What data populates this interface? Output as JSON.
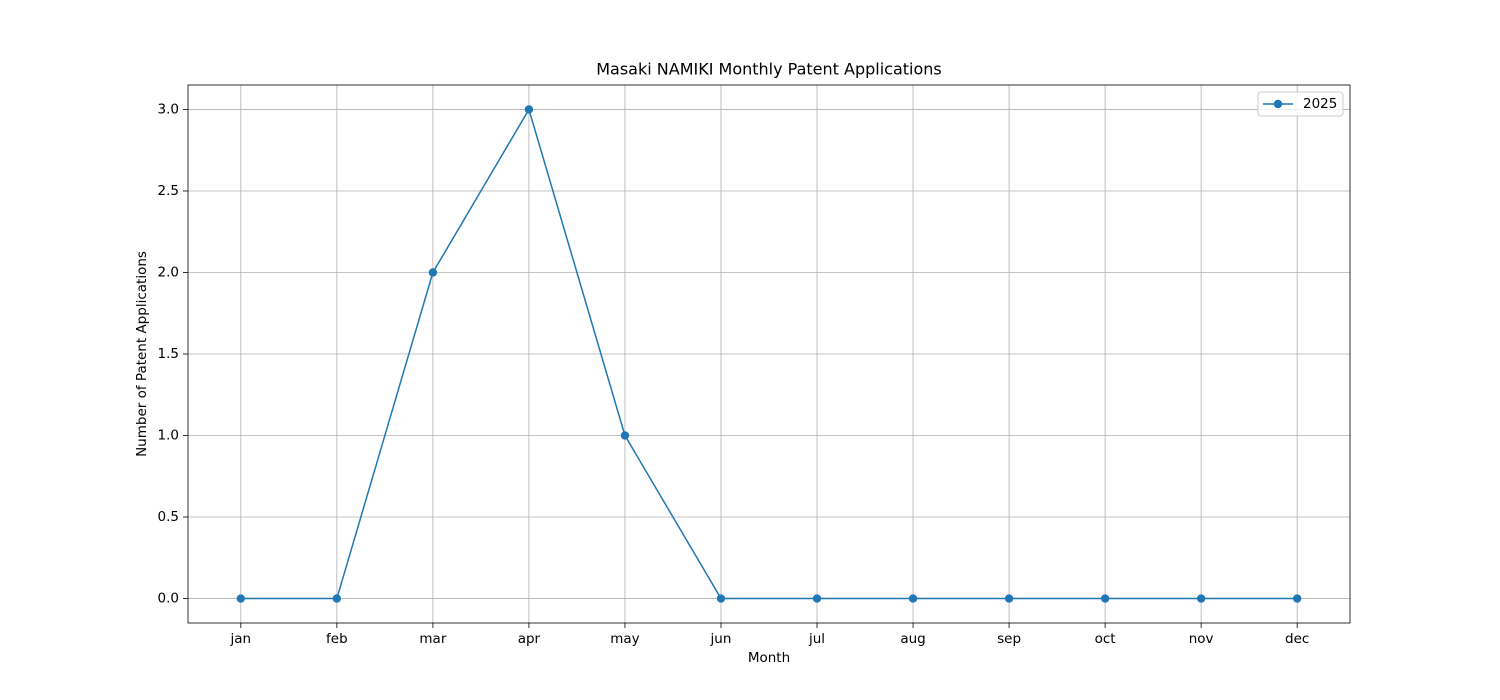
{
  "chart_data": {
    "type": "line",
    "title": "Masaki NAMIKI Monthly Patent Applications",
    "x_label": "Month",
    "y_label": "Number of Patent Applications",
    "categories": [
      "jan",
      "feb",
      "mar",
      "apr",
      "may",
      "jun",
      "jul",
      "aug",
      "sep",
      "oct",
      "nov",
      "dec"
    ],
    "series": [
      {
        "name": "2025",
        "color": "#1f77b4",
        "values": [
          0,
          0,
          2,
          3,
          1,
          0,
          0,
          0,
          0,
          0,
          0,
          0
        ]
      }
    ],
    "ylim": [
      -0.15,
      3.15
    ],
    "yticks": [
      {
        "value": 0,
        "label": "0.0"
      },
      0.5,
      {
        "value": 1,
        "label": "1.0"
      },
      1.5,
      {
        "value": 2,
        "label": "2.0"
      },
      2.5,
      {
        "value": 3,
        "label": "3.0"
      }
    ],
    "grid": true,
    "legend": "upper right"
  }
}
